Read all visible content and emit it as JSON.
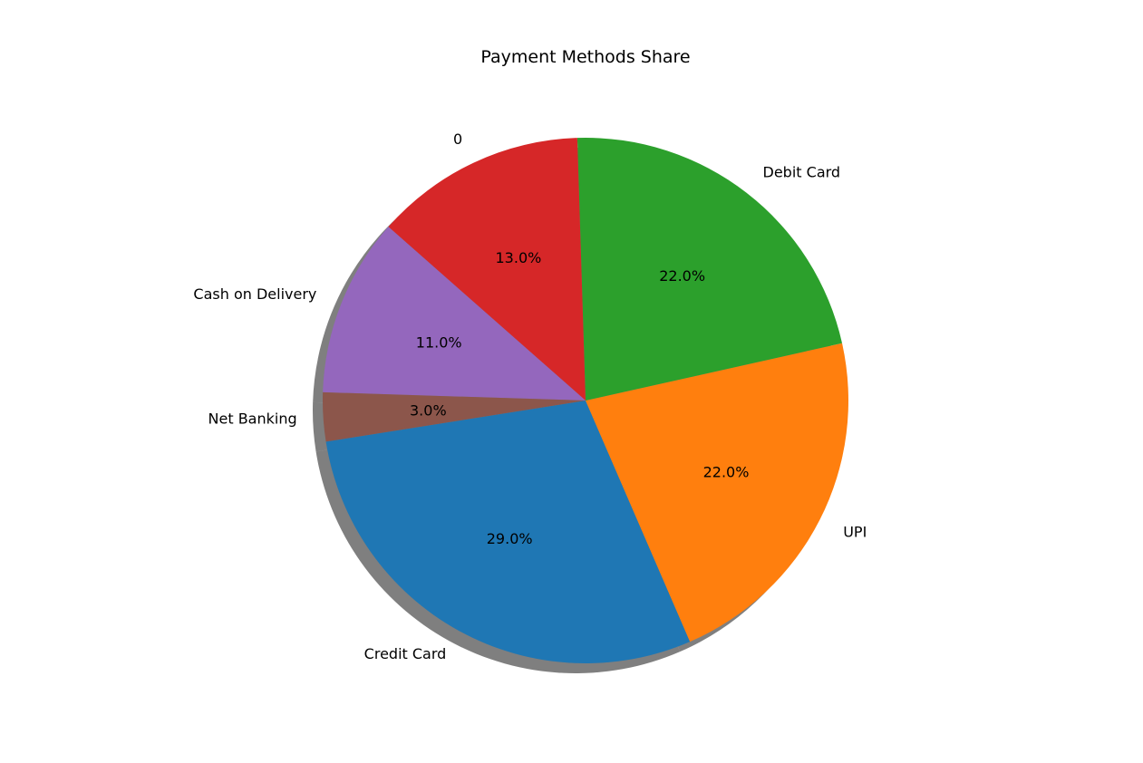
{
  "chart_data": {
    "type": "pie",
    "title": "Payment Methods Share",
    "categories": [
      "Credit Card",
      "UPI",
      "Debit Card",
      "0",
      "Cash on Delivery",
      "Net Banking"
    ],
    "values": [
      29.0,
      22.0,
      22.0,
      13.0,
      11.0,
      3.0
    ],
    "percent_labels": [
      "29.0%",
      "22.0%",
      "22.0%",
      "13.0%",
      "11.0%",
      "3.0%"
    ],
    "colors": [
      "#1f77b4",
      "#ff7f0e",
      "#2ca02c",
      "#d62728",
      "#9467bd",
      "#8c564b"
    ],
    "shadow": true,
    "legend": "none"
  }
}
